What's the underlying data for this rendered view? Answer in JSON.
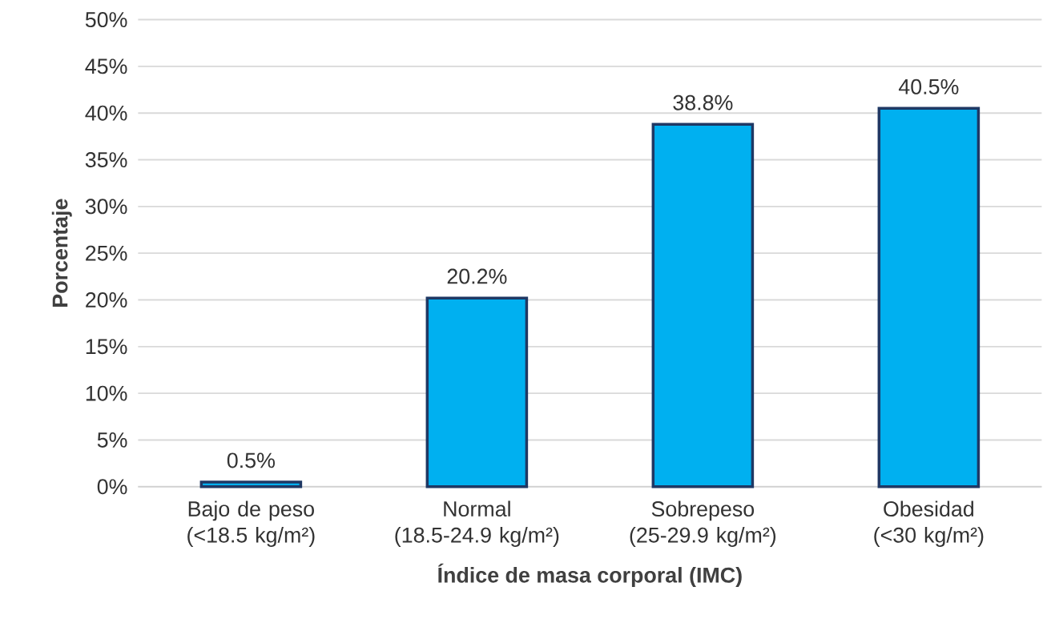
{
  "chart_data": {
    "type": "bar",
    "xlabel": "Índice de masa corporal (IMC)",
    "ylabel": "Porcentaje",
    "categories": [
      "Bajo de peso (<18.5 kg/m²)",
      "Normal (18.5-24.9 kg/m²)",
      "Sobrepeso (25-29.9 kg/m²)",
      "Obesidad (<30 kg/m²)"
    ],
    "values": [
      0.5,
      20.2,
      38.8,
      40.5
    ],
    "value_labels": [
      "0.5%",
      "20.2%",
      "38.8%",
      "40.5%"
    ],
    "color": "#00b0f0",
    "ylim": [
      0,
      50
    ],
    "yticks": [
      {
        "value": 0,
        "label": "0%"
      },
      {
        "value": 5,
        "label": "5%"
      },
      {
        "value": 10,
        "label": "10%"
      },
      {
        "value": 15,
        "label": "15%"
      },
      {
        "value": 20,
        "label": "20%"
      },
      {
        "value": 25,
        "label": "25%"
      },
      {
        "value": 30,
        "label": "30%"
      },
      {
        "value": 35,
        "label": "35%"
      },
      {
        "value": 40,
        "label": "40%"
      },
      {
        "value": 45,
        "label": "45%"
      },
      {
        "value": 50,
        "label": "50%"
      }
    ],
    "grid": "y"
  }
}
